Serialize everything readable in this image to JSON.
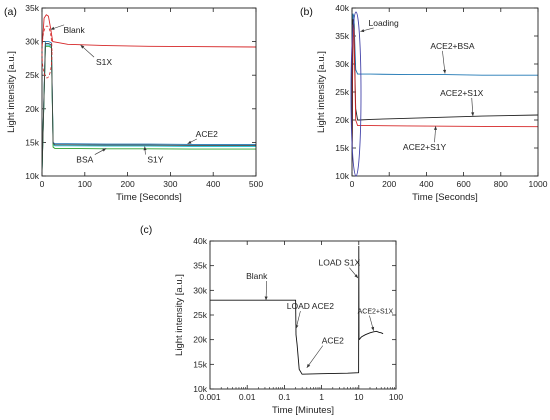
{
  "chart_data": [
    {
      "panel_label": "(a)",
      "type": "line",
      "xlabel": "Time [Seconds]",
      "ylabel": "Light intensity [a.u.]",
      "xlim": [
        0,
        500
      ],
      "ylim": [
        10000,
        35000
      ],
      "xticks": [
        0,
        100,
        200,
        300,
        400,
        500
      ],
      "xtick_labels": [
        "0",
        "100",
        "200",
        "300",
        "400",
        "500"
      ],
      "yticks": [
        10000,
        15000,
        20000,
        25000,
        30000,
        35000
      ],
      "ytick_labels": [
        "10k",
        "15k",
        "20k",
        "25k",
        "30k",
        "35k"
      ],
      "series": [
        {
          "color": "#d62728",
          "x": [
            0,
            5,
            10,
            15,
            20,
            25,
            60,
            150,
            250,
            350,
            500
          ],
          "y": [
            29000,
            33500,
            34000,
            33800,
            32000,
            30000,
            29600,
            29400,
            29300,
            29250,
            29200
          ]
        },
        {
          "color": "#1f77b4",
          "x": [
            0,
            8,
            16,
            22,
            26,
            30,
            60,
            150,
            250,
            350,
            500
          ],
          "y": [
            10800,
            30000,
            30000,
            29800,
            15000,
            14800,
            14800,
            14750,
            14750,
            14700,
            14700
          ]
        },
        {
          "color": "#17becf",
          "x": [
            0,
            8,
            16,
            22,
            26,
            30,
            60,
            150,
            250,
            350,
            500
          ],
          "y": [
            10600,
            29500,
            29500,
            29300,
            14700,
            14500,
            14500,
            14450,
            14450,
            14400,
            14400
          ]
        },
        {
          "color": "#2ca02c",
          "x": [
            0,
            8,
            16,
            22,
            26,
            30,
            60,
            150,
            250,
            350,
            500
          ],
          "y": [
            10500,
            29300,
            29300,
            29100,
            14300,
            14100,
            14100,
            14050,
            14050,
            14000,
            14000
          ]
        },
        {
          "color": "#444444",
          "x": [
            0,
            8,
            16,
            22,
            26,
            30,
            60,
            150,
            250,
            350,
            500
          ],
          "y": [
            10700,
            29700,
            29700,
            29500,
            14900,
            14650,
            14650,
            14600,
            14600,
            14550,
            14550
          ]
        }
      ],
      "annotations": [
        {
          "text": "Blank",
          "x": 75,
          "y": 31300,
          "target": [
            20,
            31800
          ]
        },
        {
          "text": "S1X",
          "x": 145,
          "y": 26500,
          "target": [
            90,
            29500
          ]
        },
        {
          "text": "ACE2",
          "x": 385,
          "y": 15800,
          "target": [
            340,
            14800
          ]
        },
        {
          "text": "BSA",
          "x": 100,
          "y": 12000,
          "target": [
            150,
            14100
          ]
        },
        {
          "text": "S1Y",
          "x": 265,
          "y": 12000,
          "target": [
            240,
            14400
          ]
        }
      ]
    },
    {
      "panel_label": "(b)",
      "type": "line",
      "xlabel": "Time [Seconds]",
      "ylabel": "Light intensity [a.u.]",
      "xlim": [
        0,
        1000
      ],
      "ylim": [
        10000,
        40000
      ],
      "xticks": [
        0,
        200,
        400,
        600,
        800,
        1000
      ],
      "xtick_labels": [
        "0",
        "200",
        "400",
        "600",
        "800",
        "1000"
      ],
      "yticks": [
        10000,
        15000,
        20000,
        25000,
        30000,
        35000,
        40000
      ],
      "ytick_labels": [
        "10k",
        "15k",
        "20k",
        "25k",
        "30k",
        "35k",
        "40k"
      ],
      "series": [
        {
          "color": "#1f77b4",
          "x": [
            0,
            5,
            10,
            20,
            30,
            40,
            100,
            300,
            500,
            700,
            1000
          ],
          "y": [
            11000,
            39000,
            38500,
            29000,
            28200,
            28200,
            28200,
            28100,
            28100,
            28000,
            28000
          ]
        },
        {
          "color": "#222222",
          "x": [
            0,
            5,
            10,
            20,
            30,
            40,
            100,
            300,
            500,
            700,
            1000
          ],
          "y": [
            11000,
            38000,
            37000,
            22000,
            20000,
            20000,
            20100,
            20300,
            20500,
            20700,
            20900
          ]
        },
        {
          "color": "#d62728",
          "x": [
            0,
            5,
            10,
            20,
            30,
            40,
            100,
            300,
            500,
            700,
            1000
          ],
          "y": [
            11000,
            37000,
            36000,
            20000,
            19000,
            19000,
            19000,
            18950,
            18900,
            18850,
            18800
          ]
        }
      ],
      "annotations": [
        {
          "text": "Loading",
          "x": 170,
          "y": 36800,
          "target": [
            45,
            35800
          ]
        },
        {
          "text": "ACE2+BSA",
          "x": 540,
          "y": 32700,
          "target": [
            500,
            28300
          ]
        },
        {
          "text": "ACE2+S1X",
          "x": 590,
          "y": 24300,
          "target": [
            650,
            20700
          ]
        },
        {
          "text": "ACE2+S1Y",
          "x": 390,
          "y": 14600,
          "target": [
            450,
            18900
          ]
        }
      ]
    },
    {
      "panel_label": "(c)",
      "type": "line",
      "xscale": "log",
      "xlabel": "Time [Minutes]",
      "ylabel": "Light intensity [a.u.]",
      "xlim": [
        0.001,
        100
      ],
      "ylim": [
        10000,
        40000
      ],
      "xticks": [
        0.001,
        0.01,
        0.1,
        1,
        10,
        100
      ],
      "xtick_labels": [
        "0.001",
        "0.01",
        "0.1",
        "1",
        "10",
        "100"
      ],
      "yticks": [
        10000,
        15000,
        20000,
        25000,
        30000,
        35000,
        40000
      ],
      "ytick_labels": [
        "10k",
        "15k",
        "20k",
        "25k",
        "30k",
        "35k",
        "40k"
      ],
      "series": [
        {
          "color": "#111111",
          "x": [
            0.001,
            0.01,
            0.1,
            0.2,
            0.205,
            0.22,
            0.25,
            0.3,
            1,
            5,
            9.9,
            10,
            10.1,
            10.5,
            11,
            12,
            15,
            20,
            25,
            30,
            35,
            40,
            45
          ],
          "y": [
            28000,
            28000,
            28000,
            28000,
            21000,
            19000,
            14000,
            13000,
            13100,
            13200,
            13300,
            39000,
            20000,
            20100,
            20300,
            20600,
            21000,
            21400,
            21600,
            21700,
            21500,
            21400,
            21200
          ]
        }
      ],
      "annotations": [
        {
          "text": "Blank",
          "x": 0.018,
          "y": 32300,
          "target": [
            0.032,
            28000
          ]
        },
        {
          "text": "LOAD ACE2",
          "x": 0.5,
          "y": 26200,
          "target": [
            0.205,
            22200
          ]
        },
        {
          "text": "LOAD S1X",
          "x": 3.0,
          "y": 35000,
          "target": [
            9.5,
            32500
          ]
        },
        {
          "text": "ACE2",
          "x": 2.0,
          "y": 19200,
          "target": [
            0.4,
            14300
          ]
        },
        {
          "text": "ACE2+S1X",
          "x": 28,
          "y": 25300,
          "target": [
            25,
            21800
          ],
          "small": true
        }
      ]
    }
  ]
}
